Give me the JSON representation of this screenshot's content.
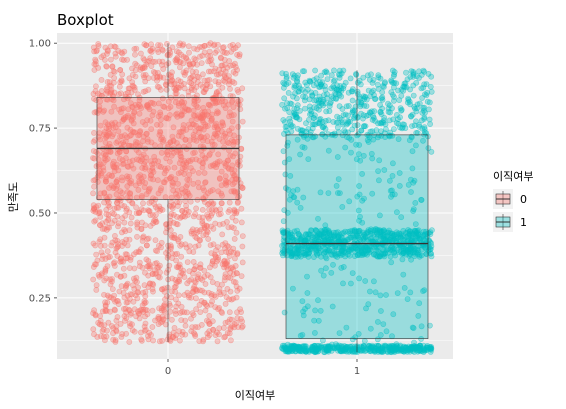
{
  "chart_data": {
    "type": "boxplot",
    "title": "Boxplot",
    "xlabel": "이직여부",
    "ylabel": "만족도",
    "categories": [
      "0",
      "1"
    ],
    "y_ticks": [
      "0.25",
      "0.50",
      "0.75",
      "1.00"
    ],
    "ylim": [
      0.07,
      1.03
    ],
    "grid": true,
    "legend": {
      "title": "이직여부",
      "position": "right",
      "entries": [
        "0",
        "1"
      ]
    },
    "series": [
      {
        "group": "0",
        "color": "#F8766D",
        "fill": "#F8766D",
        "min": 0.12,
        "q1": 0.54,
        "median": 0.69,
        "q3": 0.84,
        "max": 1.0,
        "jitter_range": [
          0.12,
          1.0
        ],
        "dense_band": [
          0.5,
          1.0
        ]
      },
      {
        "group": "1",
        "color": "#00BFC4",
        "fill": "#00BFC4",
        "min": 0.09,
        "q1": 0.13,
        "median": 0.41,
        "q3": 0.73,
        "max": 0.92,
        "jitter_range": [
          0.09,
          0.92
        ],
        "clusters": [
          [
            0.09,
            0.11
          ],
          [
            0.37,
            0.45
          ],
          [
            0.72,
            0.92
          ]
        ]
      }
    ]
  }
}
